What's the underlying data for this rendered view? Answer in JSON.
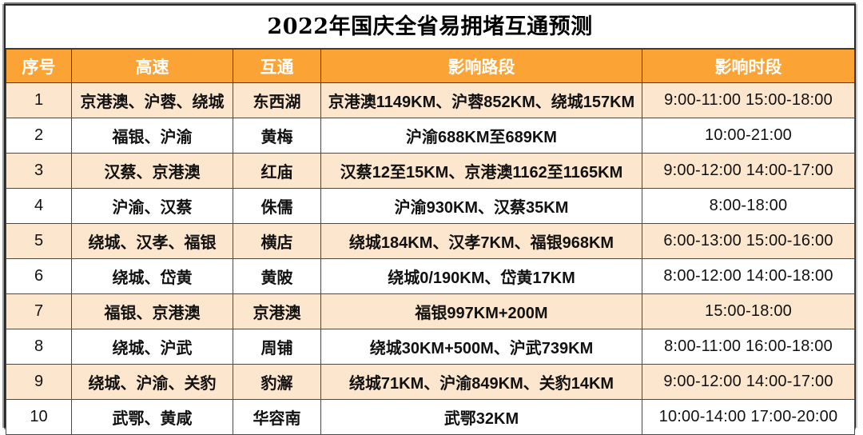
{
  "title": "2022年国庆全省易拥堵互通预测",
  "colors": {
    "header_bg": "#FBA335",
    "header_text": "#FFFFFF",
    "row_bg": "#FFFFFF",
    "row_alt_bg": "#FCE6CD",
    "border": "#4A4A4A",
    "title_text": "#000000"
  },
  "chart_data": {
    "type": "table",
    "title": "2022年国庆全省易拥堵互通预测",
    "headers": [
      "序号",
      "高速",
      "互通",
      "影响路段",
      "影响时段"
    ],
    "rows": [
      [
        "1",
        "京港澳、沪蓉、绕城",
        "东西湖",
        "京港澳1149KM、沪蓉852KM、绕城157KM",
        "9:00-11:00 15:00-18:00"
      ],
      [
        "2",
        "福银、沪渝",
        "黄梅",
        "沪渝688KM至689KM",
        "10:00-21:00"
      ],
      [
        "3",
        "汉蔡、京港澳",
        "红庙",
        "汉蔡12至15KM、京港澳1162至1165KM",
        "9:00-12:00 14:00-17:00"
      ],
      [
        "4",
        "沪渝、汉蔡",
        "侏儒",
        "沪渝930KM、汉蔡35KM",
        "8:00-18:00"
      ],
      [
        "5",
        "绕城、汉孝、福银",
        "横店",
        "绕城184KM、汉孝7KM、福银968KM",
        "6:00-13:00 15:00-16:00"
      ],
      [
        "6",
        "绕城、岱黄",
        "黄陂",
        "绕城0/190KM、岱黄17KM",
        "8:00-12:00 14:00-18:00"
      ],
      [
        "7",
        "福银、京港澳",
        "京港澳",
        "福银997KM+200M",
        "15:00-18:00"
      ],
      [
        "8",
        "绕城、沪武",
        "周铺",
        "绕城30KM+500M、沪武739KM",
        "8:00-11:00 16:00-18:00"
      ],
      [
        "9",
        "绕城、沪渝、关豹",
        "豹澥",
        "绕城71KM、沪渝849KM、关豹14KM",
        "9:00-12:00 14:00-17:00"
      ],
      [
        "10",
        "武鄂、黄咸",
        "华容南",
        "武鄂32KM",
        "10:00-14:00 17:00-20:00"
      ]
    ]
  }
}
